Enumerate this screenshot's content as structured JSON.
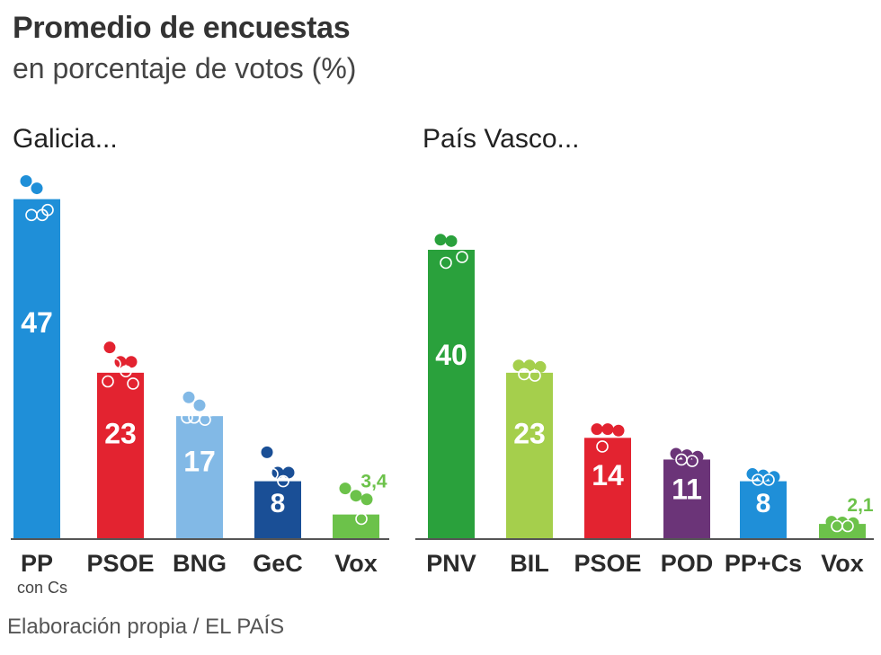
{
  "title": "Promedio de encuestas",
  "subtitle": "en porcentaje de votos (%)",
  "footer": "Elaboración propia / EL PAÍS",
  "chart_data": [
    {
      "type": "bar",
      "title": "Galicia...",
      "categories": [
        "PP",
        "PSOE",
        "BNG",
        "GeC",
        "Vox"
      ],
      "category_notes": [
        "con Cs",
        "",
        "",
        "",
        ""
      ],
      "values": [
        47,
        23,
        17,
        8,
        3.4
      ],
      "value_labels": [
        "47",
        "23",
        "17",
        "8",
        "3,4"
      ],
      "colors": [
        "#1f8fd8",
        "#e32330",
        "#82b9e6",
        "#1a4f96",
        "#6cc24a"
      ],
      "ylim": [
        0,
        50
      ],
      "grid": false,
      "poll_points": [
        [
          {
            "v": 49.5,
            "filled": true
          },
          {
            "v": 48.5,
            "filled": true
          },
          {
            "v": 45.5,
            "filled": false
          },
          {
            "v": 44.8,
            "filled": false
          },
          {
            "v": 44.8,
            "filled": false
          }
        ],
        [
          {
            "v": 26.5,
            "filled": true
          },
          {
            "v": 24.5,
            "filled": true
          },
          {
            "v": 24.5,
            "filled": true
          },
          {
            "v": 24.2,
            "filled": false
          },
          {
            "v": 23.2,
            "filled": false
          },
          {
            "v": 21.8,
            "filled": false
          },
          {
            "v": 21.5,
            "filled": false
          }
        ],
        [
          {
            "v": 19.6,
            "filled": true
          },
          {
            "v": 18.5,
            "filled": true
          },
          {
            "v": 17.8,
            "filled": false
          },
          {
            "v": 16.8,
            "filled": false
          },
          {
            "v": 16.5,
            "filled": false
          },
          {
            "v": 16.8,
            "filled": false
          }
        ],
        [
          {
            "v": 12.0,
            "filled": true
          },
          {
            "v": 9.2,
            "filled": true
          },
          {
            "v": 9.2,
            "filled": true
          },
          {
            "v": 9.0,
            "filled": false
          },
          {
            "v": 8.0,
            "filled": false
          }
        ],
        [
          {
            "v": 7.0,
            "filled": true
          },
          {
            "v": 6.0,
            "filled": true
          },
          {
            "v": 5.5,
            "filled": true
          },
          {
            "v": 4.5,
            "filled": false
          },
          {
            "v": 2.8,
            "filled": false
          }
        ]
      ]
    },
    {
      "type": "bar",
      "title": "País Vasco...",
      "categories": [
        "PNV",
        "BIL",
        "PSOE",
        "POD",
        "PP+Cs",
        "Vox"
      ],
      "category_notes": [
        "",
        "",
        "",
        "",
        "",
        ""
      ],
      "values": [
        40,
        23,
        14,
        11,
        8,
        2.1
      ],
      "value_labels": [
        "40",
        "23",
        "14",
        "11",
        "8",
        "2,1"
      ],
      "colors": [
        "#2aa13c",
        "#a5cf4c",
        "#e32330",
        "#6b3478",
        "#1f8fd8",
        "#6cc24a"
      ],
      "ylim": [
        0,
        50
      ],
      "grid": false,
      "poll_points": [
        [
          {
            "v": 41.4,
            "filled": true
          },
          {
            "v": 41.2,
            "filled": true
          },
          {
            "v": 39.0,
            "filled": false
          },
          {
            "v": 38.2,
            "filled": false
          }
        ],
        [
          {
            "v": 24.0,
            "filled": true
          },
          {
            "v": 24.0,
            "filled": true
          },
          {
            "v": 23.8,
            "filled": true
          },
          {
            "v": 22.8,
            "filled": false
          },
          {
            "v": 22.6,
            "filled": false
          }
        ],
        [
          {
            "v": 15.2,
            "filled": true
          },
          {
            "v": 15.2,
            "filled": true
          },
          {
            "v": 15.0,
            "filled": true
          },
          {
            "v": 12.8,
            "filled": false
          }
        ],
        [
          {
            "v": 11.8,
            "filled": true
          },
          {
            "v": 11.6,
            "filled": true
          },
          {
            "v": 11.4,
            "filled": true
          },
          {
            "v": 11.0,
            "filled": false
          },
          {
            "v": 10.8,
            "filled": false
          }
        ],
        [
          {
            "v": 9.0,
            "filled": true
          },
          {
            "v": 8.8,
            "filled": true
          },
          {
            "v": 8.6,
            "filled": true
          },
          {
            "v": 8.2,
            "filled": false
          },
          {
            "v": 8.2,
            "filled": false
          }
        ],
        [
          {
            "v": 2.4,
            "filled": true
          },
          {
            "v": 2.3,
            "filled": true
          },
          {
            "v": 2.2,
            "filled": true
          },
          {
            "v": 1.8,
            "filled": false
          },
          {
            "v": 1.8,
            "filled": false
          }
        ]
      ]
    }
  ]
}
